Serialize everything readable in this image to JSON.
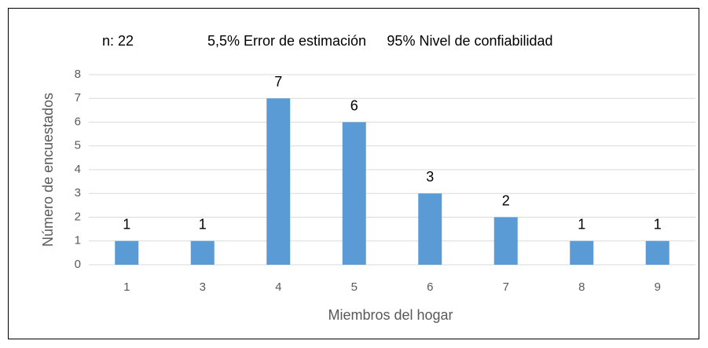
{
  "chart_data": {
    "type": "bar",
    "annotations": [
      "n: 22",
      "5,5% Error de estimación",
      "95% Nivel de confiabilidad"
    ],
    "x_label": "Miembros del hogar",
    "y_label": "Número de encuestados",
    "categories": [
      "1",
      "3",
      "4",
      "5",
      "6",
      "7",
      "8",
      "9"
    ],
    "values": [
      1,
      1,
      7,
      6,
      3,
      2,
      1,
      1
    ],
    "color": "#5b9bd5",
    "ylim": [
      0,
      8
    ],
    "yticks": [
      0,
      1,
      2,
      3,
      4,
      5,
      6,
      7,
      8
    ],
    "grid": true
  }
}
